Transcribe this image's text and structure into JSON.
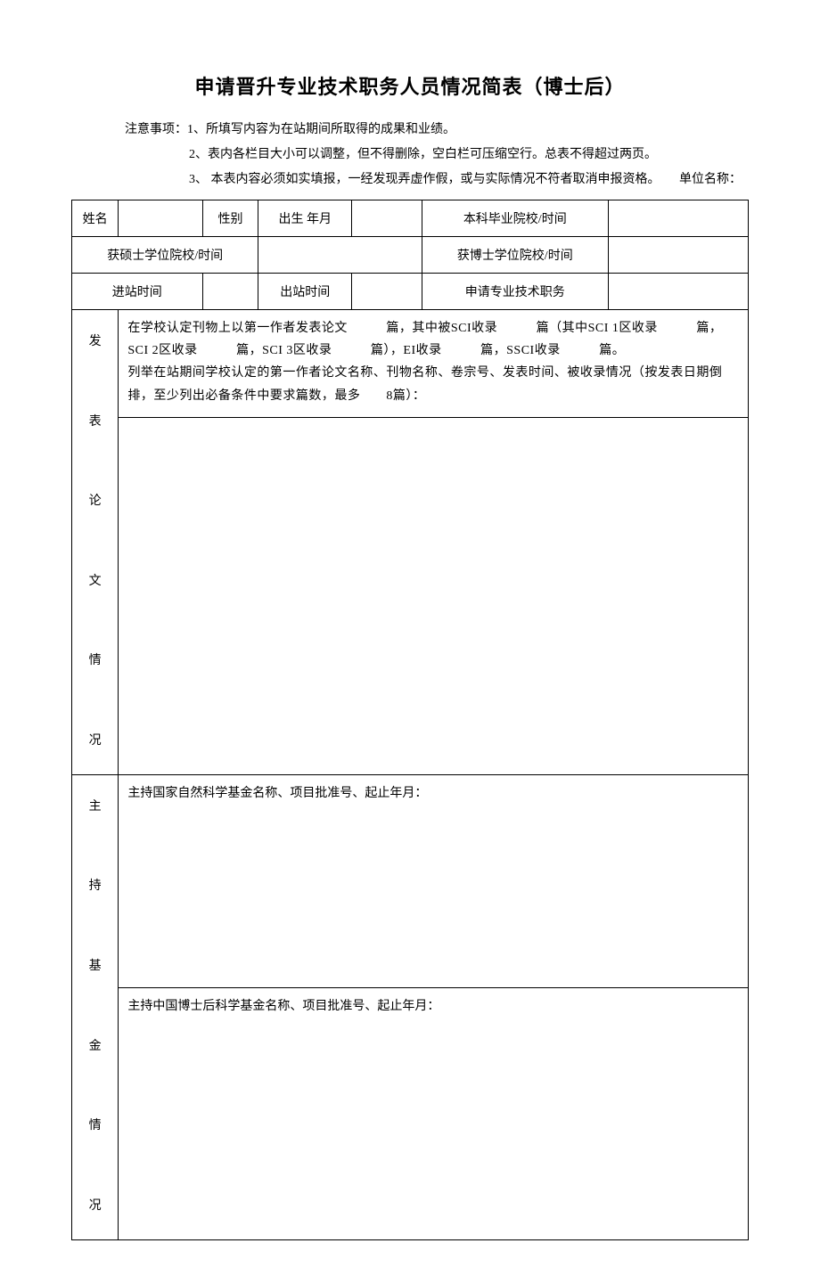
{
  "title": "申请晋升专业技术职务人员情况简表（博士后）",
  "notes": {
    "prefix": "注意事项：",
    "item1": "1、所填写内容为在站期间所取得的成果和业绩。",
    "item2": "2、表内各栏目大小可以调整，但不得删除，空白栏可压缩空行。总表不得超过两页。",
    "item3": "3、 本表内容必须如实填报，一经发现弄虚作假，或与实际情况不符者取消申报资格。",
    "unit_label": "单位名称："
  },
  "row1": {
    "name_label": "姓名",
    "name_value": "",
    "gender_label": "性别",
    "gender_value": "",
    "birth_label": "出生  年月",
    "birth_value": "",
    "undergrad_label": "本科毕业院校/时间",
    "undergrad_value": ""
  },
  "row2": {
    "master_label": "获硕士学位院校/时间",
    "master_value": "",
    "phd_label": "获博士学位院校/时间",
    "phd_value": ""
  },
  "row3": {
    "enter_label": "进站时间",
    "enter_value": "",
    "exit_label": "出站时间",
    "exit_value": "",
    "apply_label": "申请专业技术职务",
    "apply_value": ""
  },
  "publications": {
    "section_label": "发\n\n表\n\n论\n\n文\n\n情\n\n况",
    "text": "在学校认定刊物上以第一作者发表论文　　　篇，其中被SCI收录　　　篇（其中SCI 1区收录　　　篇，SCI 2区收录　　　篇，SCI 3区收录　　　篇），EI收录　　　篇，SSCI收录　　　篇。\n列举在站期间学校认定的第一作者论文名称、刊物名称、卷宗号、发表时间、被收录情况（按发表日期倒排，至少列出必备条件中要求篇数，最多　　8篇）："
  },
  "funds": {
    "section_label": "主\n\n持\n\n基\n\n金\n\n情\n\n况",
    "nsfc": "主持国家自然科学基金名称、项目批准号、起止年月：",
    "postdoc": "主持中国博士后科学基金名称、项目批准号、起止年月："
  },
  "colors": {
    "text": "#000000",
    "border": "#000000",
    "background": "#ffffff"
  },
  "fonts": {
    "title_size": 22,
    "body_size": 14
  }
}
